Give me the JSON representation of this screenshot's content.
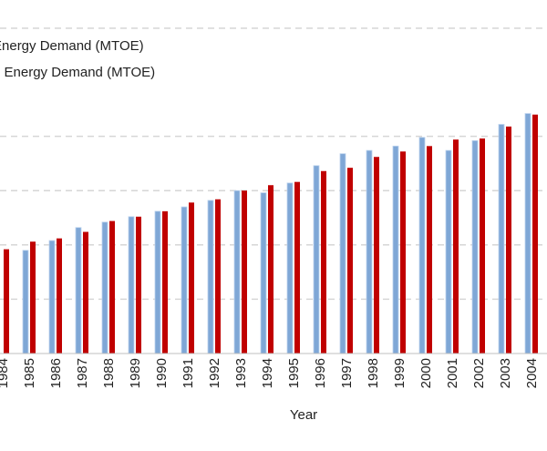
{
  "chart_data": {
    "type": "bar",
    "categories": [
      "1984",
      "1985",
      "1986",
      "1987",
      "1988",
      "1989",
      "1990",
      "1991",
      "1992",
      "1993",
      "1994",
      "1995",
      "1996",
      "1997",
      "1998",
      "1999",
      "2000",
      "2001",
      "2002",
      "2003",
      "2004"
    ],
    "series": [
      {
        "name": "...ergy Demand (MTOE)",
        "color": "#7fa7d6",
        "values": [
          null,
          95,
          104,
          116,
          121,
          126,
          131,
          135,
          141,
          150,
          148,
          157,
          173,
          184,
          187,
          191,
          199,
          187,
          196,
          211,
          221
        ]
      },
      {
        "name": "...d Energy Demand (MTOE)",
        "color": "#c00000",
        "values": [
          96,
          103,
          106,
          112,
          122,
          126,
          131,
          139,
          142,
          150,
          155,
          158,
          168,
          171,
          181,
          186,
          191,
          197,
          198,
          209,
          220
        ]
      }
    ],
    "xlabel": "Year",
    "ylabel": "",
    "ylim": [
      0,
      230
    ],
    "grid": true,
    "legend_position": "top-left"
  }
}
